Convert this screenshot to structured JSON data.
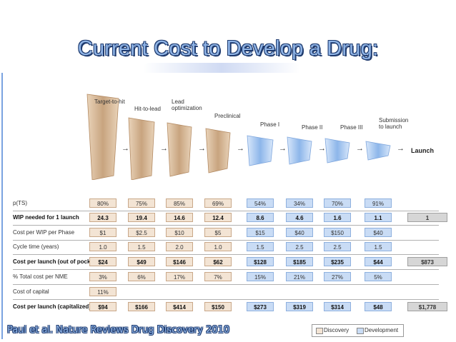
{
  "title": "Current Cost to Develop a Drug:",
  "citation": "Paul et al. Nature Reviews Drug Discovery 2010",
  "stages": [
    {
      "label": "Target-to-hit",
      "kind": "discovery"
    },
    {
      "label": "Hit-to-lead",
      "kind": "discovery"
    },
    {
      "label": "Lead optimization",
      "kind": "discovery"
    },
    {
      "label": "Preclinical",
      "kind": "discovery"
    },
    {
      "label": "Phase I",
      "kind": "development"
    },
    {
      "label": "Phase II",
      "kind": "development"
    },
    {
      "label": "Phase III",
      "kind": "development"
    },
    {
      "label": "Submission to launch",
      "kind": "development"
    }
  ],
  "launch_label": "Launch",
  "rows": [
    {
      "label": "p(TS)",
      "bold": false,
      "values": [
        "80%",
        "75%",
        "85%",
        "69%",
        "54%",
        "34%",
        "70%",
        "91%"
      ],
      "total": ""
    },
    {
      "label": "WIP needed for 1 launch",
      "bold": true,
      "values": [
        "24.3",
        "19.4",
        "14.6",
        "12.4",
        "8.6",
        "4.6",
        "1.6",
        "1.1"
      ],
      "total": "1"
    },
    {
      "label": "Cost per WIP per Phase",
      "bold": false,
      "values": [
        "$1",
        "$2.5",
        "$10",
        "$5",
        "$15",
        "$40",
        "$150",
        "$40"
      ],
      "total": ""
    },
    {
      "label": "Cycle time (years)",
      "bold": false,
      "values": [
        "1.0",
        "1.5",
        "2.0",
        "1.0",
        "1.5",
        "2.5",
        "2.5",
        "1.5"
      ],
      "total": ""
    },
    {
      "label": "Cost per launch (out of pocket)",
      "bold": true,
      "values": [
        "$24",
        "$49",
        "$146",
        "$62",
        "$128",
        "$185",
        "$235",
        "$44"
      ],
      "total": "$873"
    },
    {
      "label": "% Total cost per NME",
      "bold": false,
      "values": [
        "3%",
        "6%",
        "17%",
        "7%",
        "15%",
        "21%",
        "27%",
        "5%"
      ],
      "total": ""
    },
    {
      "label": "Cost of capital",
      "bold": false,
      "values": [
        "11%",
        "",
        "",
        "",
        "",
        "",
        "",
        ""
      ],
      "total": ""
    },
    {
      "label": "Cost per launch (capitalized)",
      "bold": true,
      "values": [
        "$94",
        "$166",
        "$414",
        "$150",
        "$273",
        "$319",
        "$314",
        "$48"
      ],
      "total": "$1,778"
    }
  ],
  "legend": {
    "discovery": "Discovery",
    "development": "Development"
  },
  "colors": {
    "discovery_fill": "#f3e4d4",
    "development_fill": "#c9dcf5",
    "title": "#8fb4e6"
  }
}
